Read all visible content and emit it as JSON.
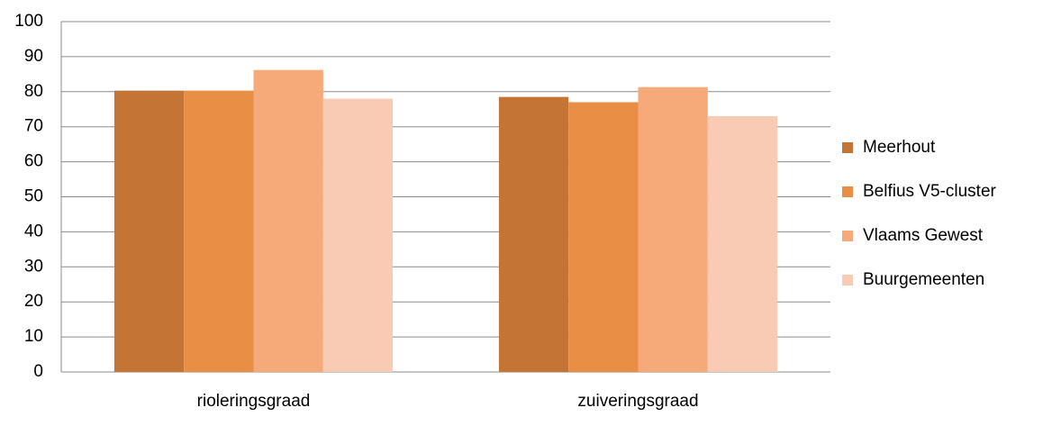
{
  "chart_data": {
    "type": "bar",
    "categories": [
      "rioleringsgraad",
      "zuiveringsgraad"
    ],
    "series": [
      {
        "name": "Meerhout",
        "color": "#c47535",
        "values": [
          80.3,
          78.5
        ]
      },
      {
        "name": "Belfius V5-cluster",
        "color": "#e98f45",
        "values": [
          80.3,
          77
        ]
      },
      {
        "name": "Vlaams Gewest",
        "color": "#f6aa7a",
        "values": [
          86.2,
          81.3
        ]
      },
      {
        "name": "Buurgemeenten",
        "color": "#f9cbb5",
        "values": [
          78,
          73
        ]
      }
    ],
    "ylim": [
      0,
      100
    ],
    "yticks": [
      0,
      10,
      20,
      30,
      40,
      50,
      60,
      70,
      80,
      90,
      100
    ],
    "grid": true,
    "legend": "right"
  }
}
